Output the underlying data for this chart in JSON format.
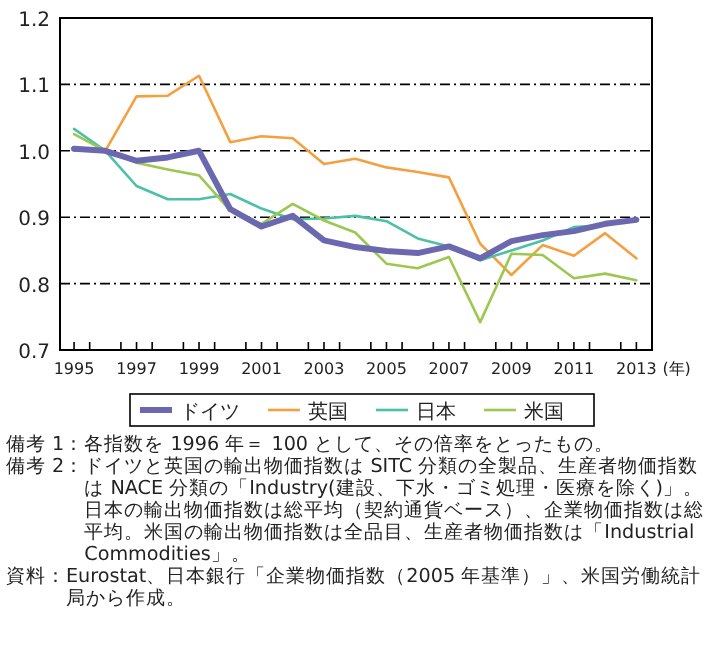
{
  "chart_data": {
    "type": "line",
    "x": [
      1995,
      1996,
      1997,
      1998,
      1999,
      2000,
      2001,
      2002,
      2003,
      2004,
      2005,
      2006,
      2007,
      2008,
      2009,
      2010,
      2011,
      2012,
      2013
    ],
    "xlabel": "(年)",
    "series": [
      {
        "name": "ドイツ",
        "color": "#6b68b0",
        "values": [
          1.003,
          1.0,
          0.985,
          0.99,
          1.0,
          0.912,
          0.886,
          0.902,
          0.865,
          0.855,
          0.849,
          0.846,
          0.856,
          0.838,
          0.864,
          0.873,
          0.879,
          0.89,
          0.896
        ]
      },
      {
        "name": "英国",
        "color": "#f5a040",
        "values": [
          null,
          1.0,
          1.082,
          1.083,
          1.113,
          1.013,
          1.022,
          1.019,
          0.98,
          0.988,
          0.975,
          0.968,
          0.96,
          0.86,
          0.813,
          0.858,
          0.842,
          0.876,
          0.838
        ]
      },
      {
        "name": "日本",
        "color": "#4dc0a8",
        "values": [
          1.033,
          1.0,
          0.947,
          0.927,
          0.927,
          0.935,
          0.913,
          0.897,
          0.898,
          0.902,
          0.894,
          0.868,
          0.856,
          0.835,
          0.85,
          0.865,
          0.885,
          0.888,
          0.897
        ]
      },
      {
        "name": "米国",
        "color": "#9cc850",
        "values": [
          1.025,
          1.0,
          0.982,
          0.972,
          0.963,
          0.91,
          0.89,
          0.92,
          0.895,
          0.877,
          0.83,
          0.823,
          0.84,
          0.742,
          0.845,
          0.843,
          0.808,
          0.815,
          0.805
        ]
      }
    ],
    "xlim": [
      1994.55,
      2013.5
    ],
    "xticks": [
      1995,
      {
        "value": 1995.5,
        "label": null
      },
      {
        "value": 1996.5,
        "label": null
      },
      1997,
      {
        "value": 1997.5,
        "label": null
      },
      {
        "value": 1998.5,
        "label": null
      },
      1999,
      {
        "value": 1999.5,
        "label": null
      },
      {
        "value": 2000.5,
        "label": null
      },
      2001,
      {
        "value": 2001.5,
        "label": null
      },
      {
        "value": 2002.5,
        "label": null
      },
      2003,
      {
        "value": 2003.5,
        "label": null
      },
      {
        "value": 2004.5,
        "label": null
      },
      2005,
      {
        "value": 2005.5,
        "label": null
      },
      {
        "value": 2006.5,
        "label": null
      },
      2007,
      {
        "value": 2007.5,
        "label": null
      },
      {
        "value": 2008.5,
        "label": null
      },
      2009,
      {
        "value": 2009.5,
        "label": null
      },
      {
        "value": 2010.5,
        "label": null
      },
      2011,
      {
        "value": 2011.5,
        "label": null
      },
      {
        "value": 2012.5,
        "label": null
      },
      2013
    ],
    "ylim": [
      0.7,
      1.2
    ],
    "yticks": [
      {
        "value": 0.7,
        "label": "0.7"
      },
      {
        "value": 0.8,
        "label": "0.8"
      },
      {
        "value": 0.9,
        "label": "0.9"
      },
      {
        "value": 1.0,
        "label": "1.0"
      },
      {
        "value": 1.1,
        "label": "1.1"
      },
      {
        "value": 1.2,
        "label": "1.2"
      }
    ],
    "grid": "y",
    "legend": "bottom",
    "line_style": "solid",
    "annotations": [
      "備考 1：各指数を 1996 年＝ 100 として、その倍率をとったもの。",
      "備考 2：ドイツと英国の輸出物価指数は SITC 分類の全製品、生産者物価指数は NACE 分類の「Industry(建設、下水・ゴミ処理・医療を除く)」。日本の輸出物価指数は総平均（契約通貨ベース）、企業物価指数は総平均。米国の輸出物価指数は全品目、生産者物価指数は「Industrial Commodities」。",
      "資料：Eurostat、日本銀行「企業物価指数（2005 年基準）」、米国労働統計局から作成。"
    ]
  }
}
